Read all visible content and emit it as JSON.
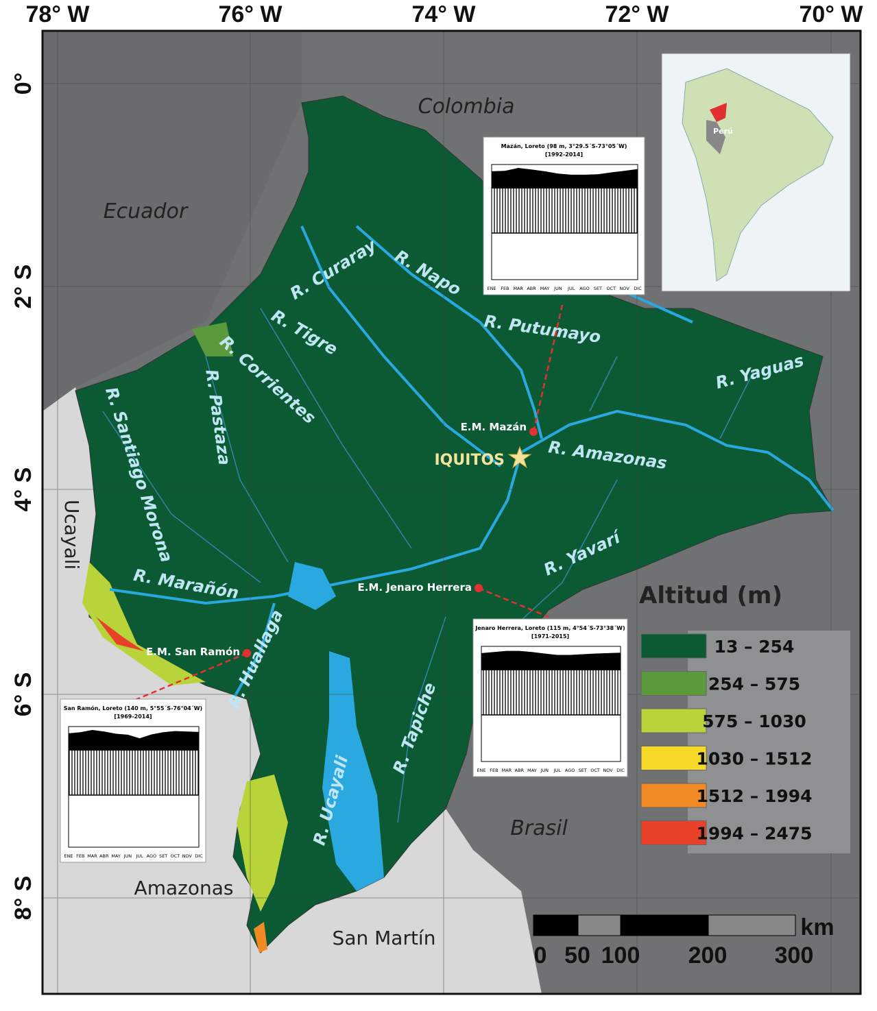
{
  "frame": {
    "top_labels": [
      "78° W",
      "76° W",
      "74° W",
      "72° W",
      "70° W"
    ],
    "left_labels": [
      "0°",
      "2° S",
      "4° S",
      "6° S",
      "8° S"
    ]
  },
  "countries": [
    "Colombia",
    "Ecuador",
    "Brasil"
  ],
  "regions": [
    "Amazonas",
    "San Martín",
    "Ucayali"
  ],
  "city": "IQUITOS",
  "rivers": [
    "R. Curaray",
    "R. Napo",
    "R. Putumayo",
    "R. Tigre",
    "R. Corrientes",
    "R. Santiago Morona",
    "R. Pastaza",
    "R. Yaguas",
    "R. Amazonas",
    "R. Yavarí",
    "R. Marañón",
    "R. Huallaga",
    "R. Ucayali",
    "R. Tapiche"
  ],
  "stations": [
    "E.M. Mazán",
    "E.M. Jenaro Herrera",
    "E.M. San Ramón"
  ],
  "climate_charts": [
    {
      "title": "Mazán, Loreto (98 m, 3°29.5´S-73°05´W)",
      "period": "[1992-2014]"
    },
    {
      "title": "Jenaro Herrera, Loreto (115 m, 4°54´S-73°38´W)",
      "period": "[1971-2015]"
    },
    {
      "title": "San Ramón, Loreto (140 m, 5°55´S-76°04´W)",
      "period": "[1969-2014]"
    }
  ],
  "months": [
    "ENE",
    "FEB",
    "MAR",
    "ABR",
    "MAY",
    "JUN",
    "JUL",
    "AGO",
    "SET",
    "OCT",
    "NOV",
    "DIC"
  ],
  "inset": {
    "label": "Perú"
  },
  "legend": {
    "title": "Altitud (m)",
    "classes": [
      {
        "label": "13  –  254",
        "color": "#0b5a34"
      },
      {
        "label": "254  –  575",
        "color": "#5a9a3c"
      },
      {
        "label": "575  – 1030",
        "color": "#b9d43a"
      },
      {
        "label": "1030 – 1512",
        "color": "#f7d92a"
      },
      {
        "label": "1512 – 1994",
        "color": "#f08a24"
      },
      {
        "label": "1994 – 2475",
        "color": "#e8432a"
      }
    ]
  },
  "scale_bar": {
    "unit": "km",
    "labels": [
      "0",
      "50",
      "100",
      "200",
      "300"
    ]
  }
}
